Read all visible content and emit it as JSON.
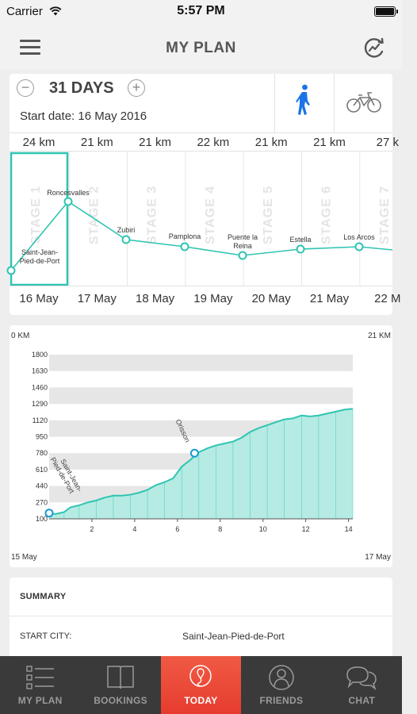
{
  "status_bar": {
    "carrier": "Carrier",
    "time": "5:57 PM"
  },
  "header": {
    "title": "MY PLAN"
  },
  "plan": {
    "days_label": "31 DAYS",
    "minus": "−",
    "plus": "+",
    "start_date": "Start date: 16 May 2016",
    "distances": [
      "24 km",
      "21 km",
      "21 km",
      "22 km",
      "21 km",
      "21 km",
      "27 k"
    ],
    "stages": [
      "STAGE 1",
      "STAGE 2",
      "STAGE 3",
      "STAGE 4",
      "STAGE 5",
      "STAGE 6",
      "STAGE 7"
    ],
    "towns": [
      "Saint-Jean-Pied-de-Port",
      "Roncesvalles",
      "Zubiri",
      "Pamplona",
      "Puente la Reina",
      "Estella",
      "Los Arcos"
    ],
    "dates": [
      "16 May",
      "17 May",
      "18 May",
      "19 May",
      "20 May",
      "21 May",
      "22 M"
    ],
    "selected_stage": 1
  },
  "elevation": {
    "start_km": "0 KM",
    "end_km": "21 KM",
    "start_date": "15 May",
    "end_date": "17 May",
    "accent": "#2fc4b2",
    "chart_data": {
      "type": "area",
      "title": "",
      "xlabel": "",
      "ylabel": "",
      "ylim": [
        100,
        1800
      ],
      "xlim": [
        0,
        14.2
      ],
      "y_ticks": [
        1800,
        1630,
        1460,
        1290,
        1120,
        950,
        780,
        610,
        440,
        270,
        100
      ],
      "x_ticks": [
        2,
        4,
        6,
        8,
        10,
        12,
        14
      ],
      "x": [
        0,
        0.3,
        0.7,
        1.0,
        1.4,
        1.8,
        2.2,
        2.6,
        3.0,
        3.4,
        3.8,
        4.2,
        4.6,
        5.0,
        5.4,
        5.8,
        6.2,
        6.6,
        7.0,
        7.4,
        7.8,
        8.2,
        8.6,
        9.0,
        9.4,
        9.8,
        10.2,
        10.6,
        11.0,
        11.4,
        11.8,
        12.2,
        12.6,
        13.0,
        13.4,
        13.8,
        14.2
      ],
      "y": [
        160,
        150,
        170,
        220,
        240,
        270,
        290,
        320,
        340,
        340,
        350,
        370,
        400,
        450,
        480,
        520,
        640,
        710,
        790,
        830,
        860,
        880,
        900,
        940,
        1000,
        1040,
        1070,
        1100,
        1130,
        1140,
        1170,
        1160,
        1170,
        1190,
        1210,
        1230,
        1240
      ],
      "annotations": [
        {
          "label": "Saint-Jean-Pied-de-Port",
          "x": 0,
          "y": 160
        },
        {
          "label": "Orisson",
          "x": 6.8,
          "y": 780
        }
      ]
    }
  },
  "summary": {
    "title": "SUMMARY",
    "start_city_key": "START CITY:",
    "start_city_value": "Saint-Jean-Pied-de-Port"
  },
  "tabs": [
    {
      "label": "MY PLAN",
      "icon": "list-icon"
    },
    {
      "label": "BOOKINGS",
      "icon": "book-icon"
    },
    {
      "label": "TODAY",
      "icon": "route-icon"
    },
    {
      "label": "FRIENDS",
      "icon": "person-icon"
    },
    {
      "label": "CHAT",
      "icon": "chat-bubbles-icon"
    }
  ],
  "active_tab": 2
}
